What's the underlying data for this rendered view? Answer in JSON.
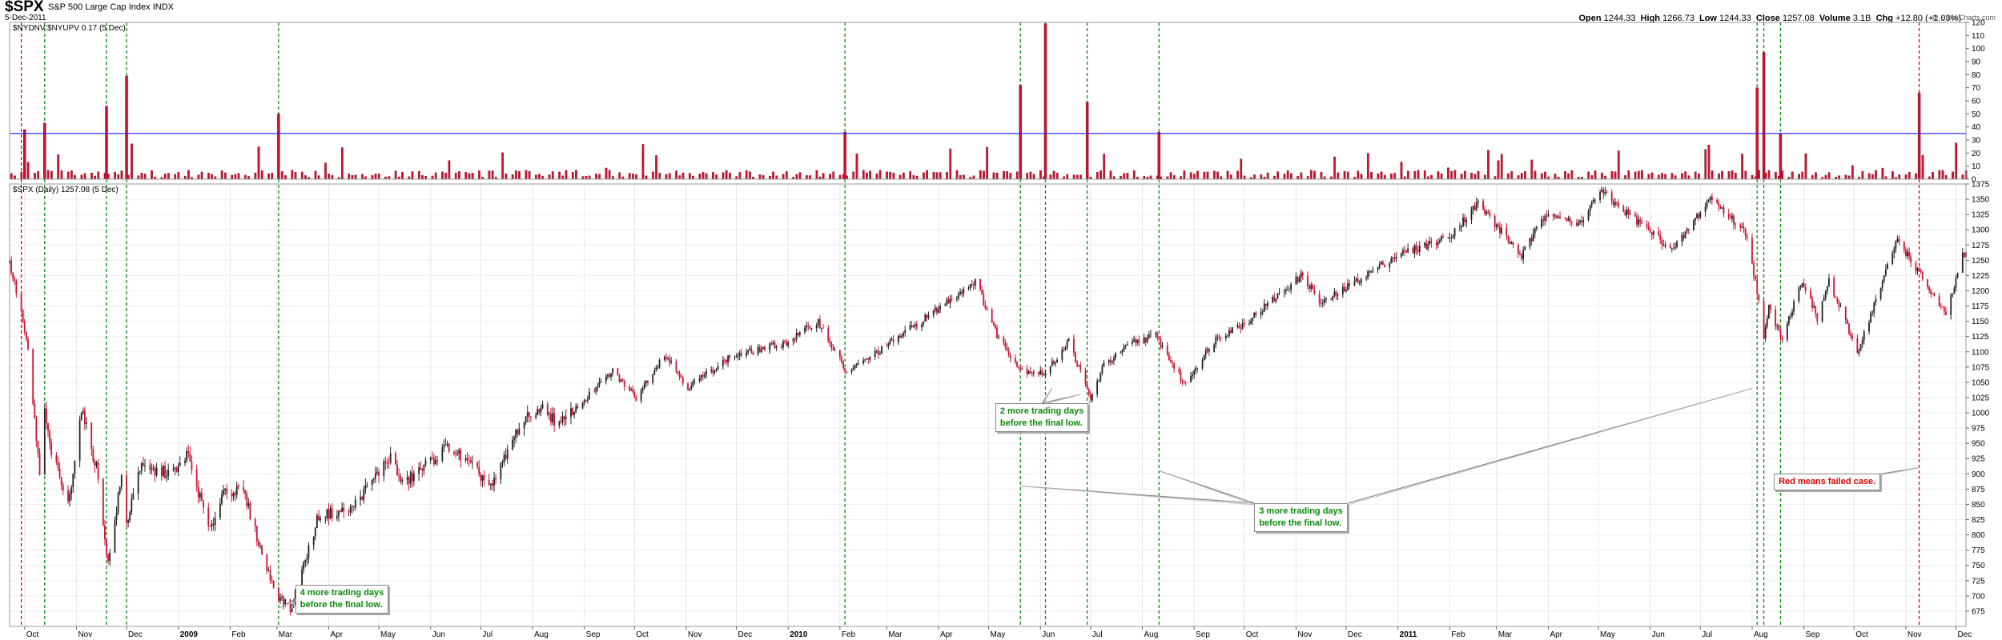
{
  "header": {
    "symbol": "$SPX",
    "name": "S&P 500 Large Cap Index",
    "exchange": "INDX",
    "date": "5-Dec-2011",
    "open_label": "Open",
    "open": "1244.33",
    "high_label": "High",
    "high": "1266.73",
    "low_label": "Low",
    "low": "1244.33",
    "close_label": "Close",
    "close": "1257.08",
    "volume_label": "Volume",
    "volume": "3.1B",
    "chg_label": "Chg",
    "chg": "+12.80 (+1.03%)",
    "watermark": "@ StockCharts.com"
  },
  "colors": {
    "up": "#222222",
    "down": "#cc1133",
    "ratio_bar": "#cc1133",
    "threshold": "#1a1aff",
    "green_marker": "#0a8a0a",
    "red_marker": "#e00000"
  },
  "chart_data": [
    {
      "type": "bar",
      "panel": "indicator",
      "legend": "$NYDNV:$NYUPV 0.17 (5 Dec)",
      "ylim": [
        0,
        120
      ],
      "yticks": [
        0,
        10,
        20,
        30,
        40,
        50,
        60,
        70,
        80,
        90,
        100,
        110,
        120
      ],
      "threshold": 35,
      "spikes": [
        {
          "date": "2008-10-01",
          "value": 38
        },
        {
          "date": "2008-10-13",
          "value": 43
        },
        {
          "date": "2008-11-19",
          "value": 56
        },
        {
          "date": "2008-12-01",
          "value": 79
        },
        {
          "date": "2009-03-02",
          "value": 50
        },
        {
          "date": "2010-02-04",
          "value": 36
        },
        {
          "date": "2010-05-20",
          "value": 72
        },
        {
          "date": "2010-06-04",
          "value": 119
        },
        {
          "date": "2010-06-29",
          "value": 59
        },
        {
          "date": "2010-08-11",
          "value": 36
        },
        {
          "date": "2011-08-04",
          "value": 70
        },
        {
          "date": "2011-08-08",
          "value": 97
        },
        {
          "date": "2011-08-18",
          "value": 35
        },
        {
          "date": "2011-11-09",
          "value": 66
        }
      ]
    },
    {
      "type": "line",
      "panel": "price",
      "legend": "$SPX (Daily) 1257.08 (5 Dec)",
      "ylim": [
        650,
        1375
      ],
      "yticks": [
        675,
        700,
        725,
        750,
        775,
        800,
        825,
        850,
        875,
        900,
        925,
        950,
        975,
        1000,
        1025,
        1050,
        1075,
        1100,
        1125,
        1150,
        1175,
        1200,
        1225,
        1250,
        1275,
        1300,
        1325,
        1350,
        1375
      ],
      "xlim": [
        "2008-09-22",
        "2011-12-07"
      ],
      "x_labels": [
        {
          "date": "2008-10-01",
          "label": "Oct"
        },
        {
          "date": "2008-11-01",
          "label": "Nov"
        },
        {
          "date": "2008-12-01",
          "label": "Dec"
        },
        {
          "date": "2009-01-01",
          "label": "2009",
          "bold": true
        },
        {
          "date": "2009-02-01",
          "label": "Feb"
        },
        {
          "date": "2009-03-01",
          "label": "Mar"
        },
        {
          "date": "2009-04-01",
          "label": "Apr"
        },
        {
          "date": "2009-05-01",
          "label": "May"
        },
        {
          "date": "2009-06-01",
          "label": "Jun"
        },
        {
          "date": "2009-07-01",
          "label": "Jul"
        },
        {
          "date": "2009-08-01",
          "label": "Aug"
        },
        {
          "date": "2009-09-01",
          "label": "Sep"
        },
        {
          "date": "2009-10-01",
          "label": "Oct"
        },
        {
          "date": "2009-11-01",
          "label": "Nov"
        },
        {
          "date": "2009-12-01",
          "label": "Dec"
        },
        {
          "date": "2010-01-01",
          "label": "2010",
          "bold": true
        },
        {
          "date": "2010-02-01",
          "label": "Feb"
        },
        {
          "date": "2010-03-01",
          "label": "Mar"
        },
        {
          "date": "2010-04-01",
          "label": "Apr"
        },
        {
          "date": "2010-05-01",
          "label": "May"
        },
        {
          "date": "2010-06-01",
          "label": "Jun"
        },
        {
          "date": "2010-07-01",
          "label": "Jul"
        },
        {
          "date": "2010-08-01",
          "label": "Aug"
        },
        {
          "date": "2010-09-01",
          "label": "Sep"
        },
        {
          "date": "2010-10-01",
          "label": "Oct"
        },
        {
          "date": "2010-11-01",
          "label": "Nov"
        },
        {
          "date": "2010-12-01",
          "label": "Dec"
        },
        {
          "date": "2011-01-01",
          "label": "2011",
          "bold": true
        },
        {
          "date": "2011-02-01",
          "label": "Feb"
        },
        {
          "date": "2011-03-01",
          "label": "Mar"
        },
        {
          "date": "2011-04-01",
          "label": "Apr"
        },
        {
          "date": "2011-05-01",
          "label": "May"
        },
        {
          "date": "2011-06-01",
          "label": "Jun"
        },
        {
          "date": "2011-07-01",
          "label": "Jul"
        },
        {
          "date": "2011-08-01",
          "label": "Aug"
        },
        {
          "date": "2011-09-01",
          "label": "Sep"
        },
        {
          "date": "2011-10-01",
          "label": "Oct"
        },
        {
          "date": "2011-11-01",
          "label": "Nov"
        },
        {
          "date": "2011-12-01",
          "label": "Dec"
        }
      ],
      "price_path": [
        [
          "2008-09-22",
          1245
        ],
        [
          "2008-09-29",
          1165
        ],
        [
          "2008-10-03",
          1100
        ],
        [
          "2008-10-10",
          900
        ],
        [
          "2008-10-13",
          1003
        ],
        [
          "2008-10-16",
          946
        ],
        [
          "2008-10-27",
          848
        ],
        [
          "2008-11-04",
          1005
        ],
        [
          "2008-11-13",
          911
        ],
        [
          "2008-11-20",
          752
        ],
        [
          "2008-11-28",
          896
        ],
        [
          "2008-12-01",
          816
        ],
        [
          "2008-12-08",
          909
        ],
        [
          "2008-12-17",
          904
        ],
        [
          "2008-12-31",
          903
        ],
        [
          "2009-01-06",
          935
        ],
        [
          "2009-01-20",
          805
        ],
        [
          "2009-01-28",
          874
        ],
        [
          "2009-02-09",
          870
        ],
        [
          "2009-02-23",
          743
        ],
        [
          "2009-03-02",
          700
        ],
        [
          "2009-03-09",
          677
        ],
        [
          "2009-03-26",
          832
        ],
        [
          "2009-04-14",
          841
        ],
        [
          "2009-05-08",
          929
        ],
        [
          "2009-05-15",
          882
        ],
        [
          "2009-06-12",
          946
        ],
        [
          "2009-07-08",
          879
        ],
        [
          "2009-07-24",
          979
        ],
        [
          "2009-08-07",
          1010
        ],
        [
          "2009-08-17",
          979
        ],
        [
          "2009-09-18",
          1068
        ],
        [
          "2009-10-02",
          1025
        ],
        [
          "2009-10-19",
          1097
        ],
        [
          "2009-11-02",
          1042
        ],
        [
          "2009-11-27",
          1091
        ],
        [
          "2009-12-31",
          1115
        ],
        [
          "2010-01-19",
          1150
        ],
        [
          "2010-02-05",
          1066
        ],
        [
          "2010-02-26",
          1104
        ],
        [
          "2010-03-31",
          1169
        ],
        [
          "2010-04-23",
          1217
        ],
        [
          "2010-05-06",
          1128
        ],
        [
          "2010-05-20",
          1071
        ],
        [
          "2010-06-04",
          1064
        ],
        [
          "2010-06-18",
          1118
        ],
        [
          "2010-07-01",
          1022
        ],
        [
          "2010-07-09",
          1078
        ],
        [
          "2010-07-26",
          1115
        ],
        [
          "2010-08-09",
          1127
        ],
        [
          "2010-08-26",
          1047
        ],
        [
          "2010-09-15",
          1125
        ],
        [
          "2010-10-01",
          1146
        ],
        [
          "2010-11-05",
          1226
        ],
        [
          "2010-11-16",
          1178
        ],
        [
          "2010-12-31",
          1258
        ],
        [
          "2011-01-31",
          1287
        ],
        [
          "2011-02-18",
          1343
        ],
        [
          "2011-03-16",
          1257
        ],
        [
          "2011-04-01",
          1333
        ],
        [
          "2011-04-18",
          1305
        ],
        [
          "2011-05-02",
          1363
        ],
        [
          "2011-05-23",
          1317
        ],
        [
          "2011-06-15",
          1266
        ],
        [
          "2011-07-07",
          1353
        ],
        [
          "2011-07-29",
          1292
        ],
        [
          "2011-08-04",
          1200
        ],
        [
          "2011-08-08",
          1119
        ],
        [
          "2011-08-11",
          1172
        ],
        [
          "2011-08-19",
          1124
        ],
        [
          "2011-08-31",
          1218
        ],
        [
          "2011-09-09",
          1154
        ],
        [
          "2011-09-16",
          1216
        ],
        [
          "2011-10-03",
          1099
        ],
        [
          "2011-10-27",
          1285
        ],
        [
          "2011-11-09",
          1229
        ],
        [
          "2011-11-25",
          1158
        ],
        [
          "2011-12-05",
          1257
        ]
      ],
      "markers": [
        {
          "date": "2008-09-29",
          "color": "red"
        },
        {
          "date": "2008-10-13",
          "color": "green"
        },
        {
          "date": "2008-11-19",
          "color": "green"
        },
        {
          "date": "2008-12-01",
          "color": "green"
        },
        {
          "date": "2009-03-02",
          "color": "green"
        },
        {
          "date": "2010-02-04",
          "color": "green"
        },
        {
          "date": "2010-05-20",
          "color": "green"
        },
        {
          "date": "2010-06-04",
          "color": "green"
        },
        {
          "date": "2010-06-29",
          "color": "green"
        },
        {
          "date": "2010-08-11",
          "color": "green"
        },
        {
          "date": "2011-08-04",
          "color": "green"
        },
        {
          "date": "2011-08-08",
          "color": "green"
        },
        {
          "date": "2011-08-18",
          "color": "green"
        },
        {
          "date": "2011-11-09",
          "color": "red"
        }
      ],
      "annotations": [
        {
          "id": "ann-4days",
          "line1": "4 more trading days",
          "line2": "before the final low.",
          "color": "green",
          "box_date": "2009-03-12",
          "box_value": 718,
          "targets": [
            [
              "2009-03-02",
              680
            ],
            [
              "2009-03-09",
              677
            ]
          ]
        },
        {
          "id": "ann-2days",
          "line1": "2 more trading days",
          "line2": "before the final low.",
          "color": "green",
          "box_date": "2010-05-05",
          "box_value": 1016,
          "targets": [
            [
              "2010-06-08",
              1040
            ],
            [
              "2010-06-25",
              1030
            ],
            [
              "2010-07-01",
              1022
            ]
          ]
        },
        {
          "id": "ann-3days",
          "line1": "3 more trading days",
          "line2": "before the final low.",
          "color": "green",
          "box_date": "2010-10-07",
          "box_value": 852,
          "targets": [
            [
              "2010-05-20",
              880
            ],
            [
              "2010-08-11",
              905
            ],
            [
              "2011-08-01",
              1040
            ]
          ]
        },
        {
          "id": "ann-red",
          "line1": "Red means failed case.",
          "line2": "",
          "color": "red",
          "box_date": "2011-08-14",
          "box_value": 900,
          "targets": [
            [
              "2011-11-09",
              910
            ]
          ]
        }
      ]
    }
  ]
}
